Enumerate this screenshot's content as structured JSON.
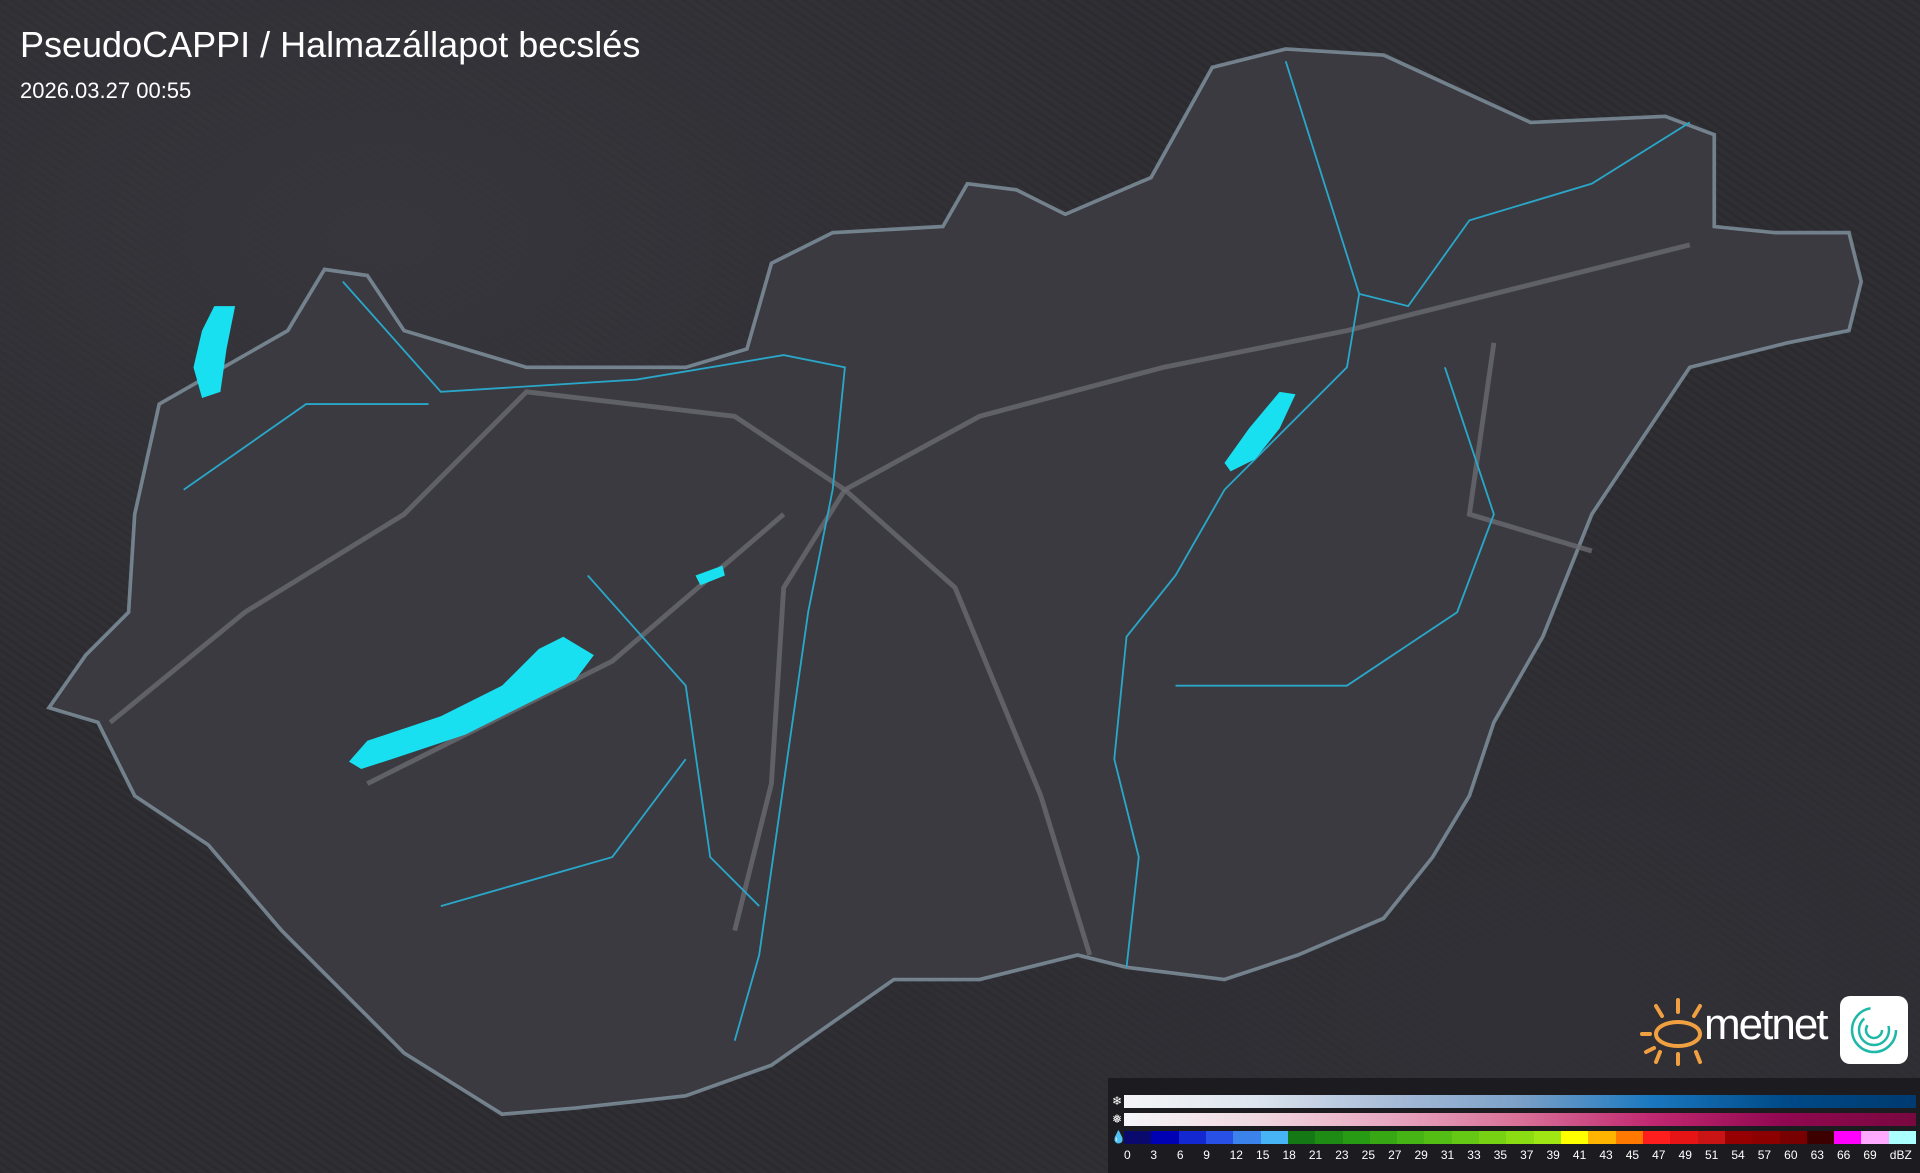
{
  "header": {
    "title": "PseudoCAPPI  / Halmazállapot becslés",
    "timestamp": "2026.03.27 00:55"
  },
  "branding": {
    "logo_text": "metnet",
    "sun_color": "#f0a040",
    "app_icon": "metnet-swirl-icon"
  },
  "map": {
    "land_color": "#3a3a40",
    "border_color": "#8fa3b0",
    "river_color": "#2aa6c8",
    "lake_color": "#18e0f0",
    "road_color": "#6a6a70"
  },
  "legend": {
    "row_icons": [
      "snowflake-icon",
      "sleet-icon",
      "raindrop-icon"
    ],
    "snow_colors": [
      "#f5f5f7",
      "#dce4ee",
      "#a8bcd8",
      "#7ba0c8",
      "#1a78c0",
      "#004a88",
      "#003a70"
    ],
    "mixed_colors": [
      "#f5f5f7",
      "#f0d8e0",
      "#e8a8c0",
      "#d87098",
      "#c02870",
      "#900850",
      "#780840"
    ],
    "rain_colors": [
      "#0a0a6e",
      "#0000b4",
      "#1428d2",
      "#2850e6",
      "#3c82eb",
      "#46b4f5",
      "#147814",
      "#1e8c14",
      "#289b14",
      "#37a814",
      "#46b414",
      "#55be14",
      "#64c814",
      "#78d214",
      "#8cdc14",
      "#a0e614",
      "#ffff00",
      "#ffb400",
      "#ff7800",
      "#ff1e1e",
      "#e61414",
      "#c81414",
      "#960000",
      "#8c0000",
      "#780000",
      "#3c0000",
      "#ff00ff",
      "#ffaaff",
      "#aaffff"
    ],
    "labels": [
      "0",
      "3",
      "6",
      "9",
      "12",
      "15",
      "18",
      "21",
      "23",
      "25",
      "27",
      "29",
      "31",
      "33",
      "35",
      "37",
      "39",
      "41",
      "43",
      "45",
      "47",
      "49",
      "51",
      "54",
      "57",
      "60",
      "63",
      "66",
      "69",
      "dBZ"
    ]
  }
}
